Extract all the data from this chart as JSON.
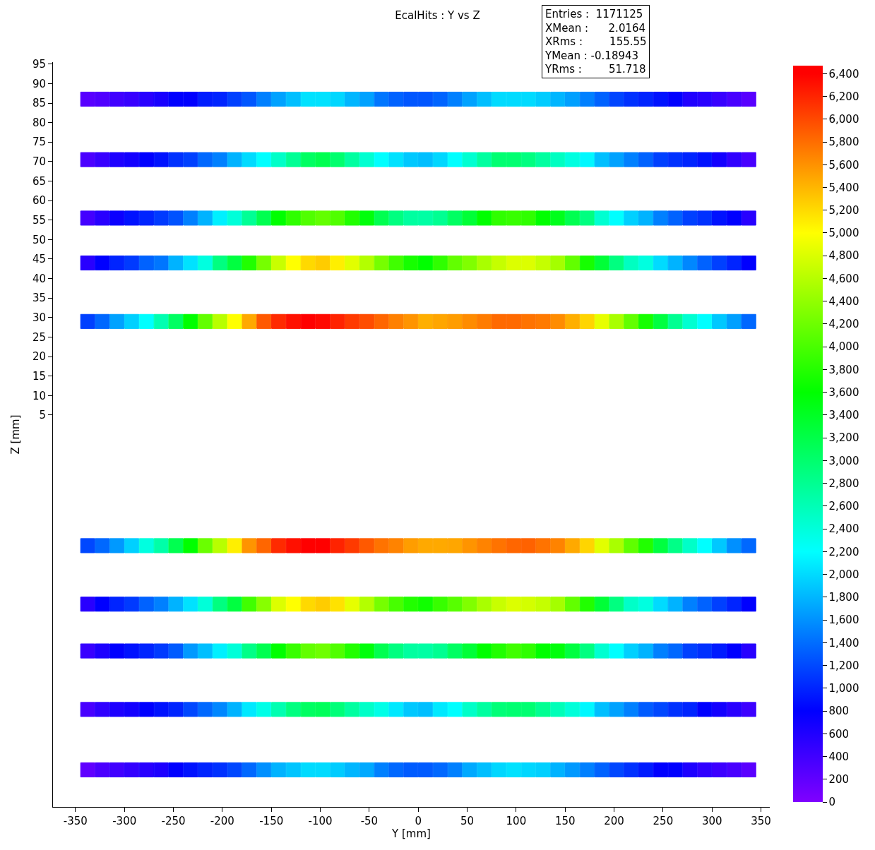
{
  "chart_data": {
    "type": "scatter",
    "title": "EcalHits : Y vs Z",
    "xlabel": "Y [mm]",
    "ylabel": "Z [mm]",
    "marker": "square",
    "annotations": [
      "Entries :  1171125",
      "XMean :      2.0164",
      "XRms :        155.55",
      "YMean : -0.18943",
      "YRms :        51.718"
    ],
    "x": [
      -337.5,
      -322.5,
      -307.5,
      -292.5,
      -277.5,
      -262.5,
      -247.5,
      -232.5,
      -217.5,
      -202.5,
      -187.5,
      -172.5,
      -157.5,
      -142.5,
      -127.5,
      -112.5,
      -97.5,
      -82.5,
      -67.5,
      -52.5,
      -37.5,
      -22.5,
      -7.5,
      7.5,
      22.5,
      37.5,
      52.5,
      67.5,
      82.5,
      97.5,
      112.5,
      127.5,
      142.5,
      157.5,
      172.5,
      187.5,
      202.5,
      217.5,
      232.5,
      247.5,
      262.5,
      277.5,
      292.5,
      307.5,
      322.5,
      337.5
    ],
    "xlim": [
      -373,
      359
    ],
    "xticks": [
      -350,
      -300,
      -250,
      -200,
      -150,
      -100,
      -50,
      0,
      50,
      100,
      150,
      200,
      250,
      300,
      350
    ],
    "ylim": [
      -95.5,
      95.5
    ],
    "yticks": [
      5,
      10,
      15,
      20,
      25,
      30,
      35,
      40,
      45,
      50,
      55,
      60,
      65,
      70,
      75,
      80,
      85,
      90,
      95
    ],
    "clim": [
      0,
      6470
    ],
    "cticks": [
      0,
      200,
      400,
      600,
      800,
      {
        "value": 1000,
        "label": "1,000"
      },
      {
        "value": 1200,
        "label": "1,200"
      },
      {
        "value": 1400,
        "label": "1,400"
      },
      {
        "value": 1600,
        "label": "1,600"
      },
      {
        "value": 1800,
        "label": "1,800"
      },
      {
        "value": 2000,
        "label": "2,000"
      },
      {
        "value": 2200,
        "label": "2,200"
      },
      {
        "value": 2400,
        "label": "2,400"
      },
      {
        "value": 2600,
        "label": "2,600"
      },
      {
        "value": 2800,
        "label": "2,800"
      },
      {
        "value": 3000,
        "label": "3,000"
      },
      {
        "value": 3200,
        "label": "3,200"
      },
      {
        "value": 3400,
        "label": "3,400"
      },
      {
        "value": 3600,
        "label": "3,600"
      },
      {
        "value": 3800,
        "label": "3,800"
      },
      {
        "value": 4000,
        "label": "4,000"
      },
      {
        "value": 4200,
        "label": "4,200"
      },
      {
        "value": 4400,
        "label": "4,400"
      },
      {
        "value": 4600,
        "label": "4,600"
      },
      {
        "value": 4800,
        "label": "4,800"
      },
      {
        "value": 5000,
        "label": "5,000"
      },
      {
        "value": 5200,
        "label": "5,200"
      },
      {
        "value": 5400,
        "label": "5,400"
      },
      {
        "value": 5600,
        "label": "5,600"
      },
      {
        "value": 5800,
        "label": "5,800"
      },
      {
        "value": 6000,
        "label": "6,000"
      },
      {
        "value": 6200,
        "label": "6,200"
      },
      {
        "value": 6400,
        "label": "6,400"
      }
    ],
    "series": [
      {
        "colors": [
          "#5500ff",
          "#5000ff",
          "#3a00ff",
          "#3000ff",
          "#2000ff",
          "#1400ff",
          "#0000ff",
          "#0000ff",
          "#001aff",
          "#0020ff",
          "#0040ff",
          "#0055ff",
          "#0080ff",
          "#00a0ff",
          "#00c0ff",
          "#00e0ff",
          "#00e0ff",
          "#00d4ff",
          "#00b4ff",
          "#00a0ff",
          "#0078ff",
          "#0060ff",
          "#0055ff",
          "#0055ff",
          "#0066ff",
          "#0080ff",
          "#00a0ff",
          "#00c0ff",
          "#00dcff",
          "#00dcff",
          "#00dcff",
          "#00ccff",
          "#00b4ff",
          "#009cff",
          "#0080ff",
          "#0060ff",
          "#0045ff",
          "#0030ff",
          "#0020ff",
          "#0010ff",
          "#0000ff",
          "#1400ff",
          "#2000ff",
          "#3000ff",
          "#4000ff",
          "#5500ff"
        ],
        "values": [
          86,
          86,
          86,
          86,
          86,
          86,
          86,
          86,
          86,
          86,
          86,
          86,
          86,
          86,
          86,
          86,
          86,
          86,
          86,
          86,
          86,
          86,
          86,
          86,
          86,
          86,
          86,
          86,
          86,
          86,
          86,
          86,
          86,
          86,
          86,
          86,
          86,
          86,
          86,
          86,
          86,
          86,
          86,
          86,
          86,
          86
        ],
        "cvalues": [
          250,
          300,
          400,
          450,
          550,
          650,
          800,
          800,
          960,
          1000,
          1150,
          1270,
          1500,
          1690,
          1850,
          2040,
          2040,
          1980,
          1800,
          1690,
          1450,
          1340,
          1270,
          1270,
          1350,
          1500,
          1690,
          1850,
          2000,
          2000,
          2000,
          1920,
          1800,
          1680,
          1500,
          1340,
          1180,
          1070,
          1000,
          900,
          800,
          600,
          550,
          450,
          350,
          250
        ]
      },
      {
        "colors": [
          "#4a00ff",
          "#3300ff",
          "#1800ff",
          "#1000ff",
          "#0000ff",
          "#0010ff",
          "#0030ff",
          "#0040ff",
          "#0068ff",
          "#0080ff",
          "#00b0ff",
          "#00dcff",
          "#00ffff",
          "#00ffc8",
          "#00ff96",
          "#00ff64",
          "#00ff50",
          "#00ff6e",
          "#00ffa0",
          "#00ffd0",
          "#00ffff",
          "#00e0ff",
          "#00c8ff",
          "#00c0ff",
          "#00d4ff",
          "#00ffff",
          "#00ffd0",
          "#00ffa0",
          "#00ff70",
          "#00ff70",
          "#00ff80",
          "#00ffa0",
          "#00ffc0",
          "#00ffe0",
          "#00f8ff",
          "#00c0ff",
          "#00a0ff",
          "#0080ff",
          "#0060ff",
          "#0040ff",
          "#0030ff",
          "#0020ff",
          "#0010ff",
          "#1000ff",
          "#2800ff",
          "#4000ff"
        ],
        "values": [
          70.5,
          70.5,
          70.5,
          70.5,
          70.5,
          70.5,
          70.5,
          70.5,
          70.5,
          70.5,
          70.5,
          70.5,
          70.5,
          70.5,
          70.5,
          70.5,
          70.5,
          70.5,
          70.5,
          70.5,
          70.5,
          70.5,
          70.5,
          70.5,
          70.5,
          70.5,
          70.5,
          70.5,
          70.5,
          70.5,
          70.5,
          70.5,
          70.5,
          70.5,
          70.5,
          70.5,
          70.5,
          70.5,
          70.5,
          70.5,
          70.5,
          70.5,
          70.5,
          70.5,
          70.5,
          70.5
        ],
        "cvalues": [
          330,
          450,
          620,
          680,
          800,
          900,
          1070,
          1150,
          1370,
          1500,
          1780,
          2000,
          2200,
          2500,
          2780,
          3060,
          3160,
          3000,
          2720,
          2450,
          2200,
          2040,
          1900,
          1850,
          1980,
          2200,
          2450,
          2720,
          2980,
          2980,
          2900,
          2720,
          2540,
          2370,
          2160,
          1850,
          1690,
          1500,
          1340,
          1150,
          1070,
          1000,
          900,
          680,
          500,
          350
        ]
      },
      {
        "colors": [
          "#3a00ff",
          "#2000ff",
          "#0800ff",
          "#0010ff",
          "#0020ff",
          "#0038ff",
          "#0050ff",
          "#0080ff",
          "#00b0ff",
          "#00f0ff",
          "#00ffd8",
          "#00ff96",
          "#00ff50",
          "#00ff00",
          "#30ff00",
          "#50ff00",
          "#60ff00",
          "#50ff00",
          "#20ff00",
          "#00ff10",
          "#00ff50",
          "#00ff80",
          "#00ffa0",
          "#00ffa8",
          "#00ff90",
          "#00ff60",
          "#00ff30",
          "#00ff00",
          "#30ff00",
          "#38ff00",
          "#30ff00",
          "#00ff00",
          "#00ff20",
          "#00ff50",
          "#00ff80",
          "#00ffd0",
          "#00ffff",
          "#00d0ff",
          "#00b0ff",
          "#0080ff",
          "#0060ff",
          "#0040ff",
          "#0030ff",
          "#0010ff",
          "#0000ff",
          "#2000ff"
        ],
        "values": [
          55.5,
          55.5,
          55.5,
          55.5,
          55.5,
          55.5,
          55.5,
          55.5,
          55.5,
          55.5,
          55.5,
          55.5,
          55.5,
          55.5,
          55.5,
          55.5,
          55.5,
          55.5,
          55.5,
          55.5,
          55.5,
          55.5,
          55.5,
          55.5,
          55.5,
          55.5,
          55.5,
          55.5,
          55.5,
          55.5,
          55.5,
          55.5,
          55.5,
          55.5,
          55.5,
          55.5,
          55.5,
          55.5,
          55.5,
          55.5,
          55.5,
          55.5,
          55.5,
          55.5,
          55.5,
          55.5
        ],
        "cvalues": [
          380,
          550,
          730,
          900,
          1000,
          1120,
          1250,
          1500,
          1780,
          2120,
          2410,
          2780,
          3160,
          3600,
          3860,
          4040,
          4140,
          4040,
          3780,
          3540,
          3160,
          2900,
          2720,
          2700,
          2800,
          3060,
          3300,
          3600,
          3860,
          3900,
          3860,
          3600,
          3450,
          3160,
          2900,
          2450,
          2200,
          1940,
          1780,
          1500,
          1340,
          1150,
          1070,
          900,
          800,
          550
        ]
      },
      {
        "colors": [
          "#2000ff",
          "#0000ff",
          "#0020ff",
          "#0038ff",
          "#0060ff",
          "#0078ff",
          "#00b0ff",
          "#00e0ff",
          "#00ffe0",
          "#00ff80",
          "#00ff40",
          "#20ff00",
          "#78ff00",
          "#c8ff00",
          "#ffff00",
          "#ffd800",
          "#ffcc00",
          "#fff000",
          "#e0ff00",
          "#b0ff00",
          "#78ff00",
          "#40ff00",
          "#18ff00",
          "#00ff00",
          "#30ff00",
          "#60ff00",
          "#80ff00",
          "#a8ff00",
          "#c0ff00",
          "#d8ff00",
          "#d8ff00",
          "#c0ff00",
          "#a0ff00",
          "#60ff00",
          "#18ff00",
          "#00ff30",
          "#00ff80",
          "#00ffc0",
          "#00ffe0",
          "#00d8ff",
          "#00b0ff",
          "#0088ff",
          "#0060ff",
          "#0040ff",
          "#0020ff",
          "#0000ff"
        ],
        "values": [
          44,
          44,
          44,
          44,
          44,
          44,
          44,
          44,
          44,
          44,
          44,
          44,
          44,
          44,
          44,
          44,
          44,
          44,
          44,
          44,
          44,
          44,
          44,
          44,
          44,
          44,
          44,
          44,
          44,
          44,
          44,
          44,
          44,
          44,
          44,
          44,
          44,
          44,
          44,
          44,
          44,
          44,
          44,
          44,
          44,
          44
        ],
        "cvalues": [
          550,
          800,
          1000,
          1120,
          1340,
          1450,
          1780,
          2040,
          2370,
          2900,
          3250,
          3780,
          4250,
          4700,
          5000,
          5210,
          5280,
          5090,
          4840,
          4580,
          4250,
          3950,
          3720,
          3600,
          3860,
          4140,
          4300,
          4530,
          4680,
          4810,
          4810,
          4680,
          4500,
          4140,
          3720,
          3300,
          2900,
          2540,
          2370,
          2000,
          1780,
          1540,
          1340,
          1150,
          1000,
          800
        ]
      },
      {
        "colors": [
          "#0040ff",
          "#0068ff",
          "#00a0ff",
          "#00d0ff",
          "#00ffff",
          "#00ffb0",
          "#00ff60",
          "#00ff00",
          "#60ff00",
          "#b8ff00",
          "#ffff00",
          "#ffa800",
          "#ff5a00",
          "#ff2a00",
          "#ff1000",
          "#ff0000",
          "#ff0800",
          "#ff2000",
          "#ff3800",
          "#ff4a00",
          "#ff6600",
          "#ff7e00",
          "#ff9000",
          "#ffaa00",
          "#ffa000",
          "#ff9800",
          "#ff8800",
          "#ff7a00",
          "#ff6800",
          "#ff6800",
          "#ff7000",
          "#ff7600",
          "#ff8800",
          "#ffaa00",
          "#ffd000",
          "#e8ff00",
          "#a8ff00",
          "#60ff00",
          "#18ff00",
          "#00ff40",
          "#00ff90",
          "#00ffd0",
          "#00ffff",
          "#00c8ff",
          "#009cff",
          "#0068ff"
        ],
        "values": [
          29,
          29,
          29,
          29,
          29,
          29,
          29,
          29,
          29,
          29,
          29,
          29,
          29,
          29,
          29,
          29,
          29,
          29,
          29,
          29,
          29,
          29,
          29,
          29,
          29,
          29,
          29,
          29,
          29,
          29,
          29,
          29,
          29,
          29,
          29,
          29,
          29,
          29,
          29,
          29,
          29,
          29,
          29,
          29,
          29,
          29
        ],
        "cvalues": [
          1150,
          1370,
          1690,
          1940,
          2200,
          2630,
          3060,
          3600,
          4140,
          4610,
          5000,
          5470,
          5910,
          6170,
          6310,
          6400,
          6350,
          6210,
          6080,
          5980,
          5840,
          5700,
          5590,
          5440,
          5490,
          5540,
          5630,
          5720,
          5820,
          5820,
          5770,
          5730,
          5630,
          5440,
          5230,
          4870,
          4530,
          4140,
          3720,
          3250,
          2800,
          2450,
          2200,
          1900,
          1680,
          1370
        ]
      },
      {
        "colors": [
          "#0048ff",
          "#0068ff",
          "#0098ff",
          "#00d0ff",
          "#00ffe0",
          "#00ffa8",
          "#00ff50",
          "#00ff00",
          "#68ff00",
          "#b8ff00",
          "#fff000",
          "#ff9000",
          "#ff6600",
          "#ff2800",
          "#ff1000",
          "#ff0000",
          "#ff0000",
          "#ff2000",
          "#ff3800",
          "#ff5a00",
          "#ff7000",
          "#ff8000",
          "#ff9800",
          "#ffa800",
          "#ffa800",
          "#ffa400",
          "#ff9000",
          "#ff8000",
          "#ff7000",
          "#ff6600",
          "#ff6000",
          "#ff7000",
          "#ff8000",
          "#ffa800",
          "#ffd000",
          "#e0ff00",
          "#a8ff00",
          "#5cff00",
          "#20ff00",
          "#00ff40",
          "#00ff88",
          "#00ffc8",
          "#00ffff",
          "#00c8ff",
          "#0090ff",
          "#0068ff"
        ],
        "values": [
          -28.5,
          -28.5,
          -28.5,
          -28.5,
          -28.5,
          -28.5,
          -28.5,
          -28.5,
          -28.5,
          -28.5,
          -28.5,
          -28.5,
          -28.5,
          -28.5,
          -28.5,
          -28.5,
          -28.5,
          -28.5,
          -28.5,
          -28.5,
          -28.5,
          -28.5,
          -28.5,
          -28.5,
          -28.5,
          -28.5,
          -28.5,
          -28.5,
          -28.5,
          -28.5,
          -28.5,
          -28.5,
          -28.5,
          -28.5,
          -28.5,
          -28.5,
          -28.5,
          -28.5,
          -28.5,
          -28.5,
          -28.5,
          -28.5,
          -28.5,
          -28.5,
          -28.5,
          -28.5
        ],
        "cvalues": [
          1190,
          1370,
          1640,
          1940,
          2370,
          2680,
          3160,
          3600,
          4180,
          4610,
          5090,
          5590,
          5840,
          6170,
          6310,
          6400,
          6400,
          6210,
          6080,
          5910,
          5770,
          5680,
          5540,
          5470,
          5470,
          5490,
          5590,
          5680,
          5770,
          5840,
          5860,
          5770,
          5680,
          5470,
          5230,
          4840,
          4530,
          4120,
          3780,
          3250,
          2860,
          2500,
          2200,
          1900,
          1590,
          1370
        ]
      },
      {
        "colors": [
          "#2000ff",
          "#0000ff",
          "#0020ff",
          "#0038ff",
          "#0060ff",
          "#0080ff",
          "#00b0ff",
          "#00e0ff",
          "#00ffd8",
          "#00ff80",
          "#00ff40",
          "#40ff00",
          "#88ff00",
          "#d8ff00",
          "#ffff00",
          "#ffd800",
          "#ffcc00",
          "#ffe000",
          "#e8ff00",
          "#b0ff00",
          "#78ff00",
          "#48ff00",
          "#20ff00",
          "#10ff00",
          "#38ff00",
          "#58ff00",
          "#80ff00",
          "#a8ff00",
          "#c8ff00",
          "#d8ff00",
          "#d0ff00",
          "#c0ff00",
          "#a0ff00",
          "#60ff00",
          "#20ff00",
          "#00ff30",
          "#00ff80",
          "#00ffc8",
          "#00ffe0",
          "#00d8ff",
          "#00b0ff",
          "#0080ff",
          "#0060ff",
          "#0040ff",
          "#0020ff",
          "#0000ff"
        ],
        "values": [
          -43.5,
          -43.5,
          -43.5,
          -43.5,
          -43.5,
          -43.5,
          -43.5,
          -43.5,
          -43.5,
          -43.5,
          -43.5,
          -43.5,
          -43.5,
          -43.5,
          -43.5,
          -43.5,
          -43.5,
          -43.5,
          -43.5,
          -43.5,
          -43.5,
          -43.5,
          -43.5,
          -43.5,
          -43.5,
          -43.5,
          -43.5,
          -43.5,
          -43.5,
          -43.5,
          -43.5,
          -43.5,
          -43.5,
          -43.5,
          -43.5,
          -43.5,
          -43.5,
          -43.5,
          -43.5,
          -43.5,
          -43.5,
          -43.5,
          -43.5,
          -43.5,
          -43.5,
          -43.5
        ],
        "cvalues": [
          550,
          800,
          1000,
          1120,
          1340,
          1500,
          1780,
          2040,
          2410,
          2900,
          3250,
          3950,
          4340,
          4810,
          5000,
          5210,
          5280,
          5160,
          4870,
          4580,
          4250,
          3990,
          3780,
          3690,
          3900,
          4080,
          4300,
          4530,
          4700,
          4810,
          4760,
          4680,
          4500,
          4140,
          3780,
          3300,
          2900,
          2500,
          2370,
          2000,
          1780,
          1500,
          1340,
          1150,
          1000,
          800
        ]
      },
      {
        "colors": [
          "#3000ff",
          "#1800ff",
          "#0000ff",
          "#0010ff",
          "#0020ff",
          "#0038ff",
          "#0058ff",
          "#0098ff",
          "#00c0ff",
          "#00f0ff",
          "#00ffd8",
          "#00ff88",
          "#00ff50",
          "#00ff00",
          "#38ff00",
          "#60ff00",
          "#70ff00",
          "#50ff00",
          "#20ff00",
          "#00ff10",
          "#00ff50",
          "#00ff80",
          "#00ffa0",
          "#00ffa8",
          "#00ff90",
          "#00ff60",
          "#00ff30",
          "#00ff00",
          "#20ff00",
          "#40ff00",
          "#30ff00",
          "#00ff00",
          "#00ff10",
          "#00ff40",
          "#00ff80",
          "#00ffd0",
          "#00ffff",
          "#00d0ff",
          "#00b0ff",
          "#0080ff",
          "#0068ff",
          "#0040ff",
          "#0030ff",
          "#0018ff",
          "#0000ff",
          "#2000ff"
        ],
        "values": [
          -55.5,
          -55.5,
          -55.5,
          -55.5,
          -55.5,
          -55.5,
          -55.5,
          -55.5,
          -55.5,
          -55.5,
          -55.5,
          -55.5,
          -55.5,
          -55.5,
          -55.5,
          -55.5,
          -55.5,
          -55.5,
          -55.5,
          -55.5,
          -55.5,
          -55.5,
          -55.5,
          -55.5,
          -55.5,
          -55.5,
          -55.5,
          -55.5,
          -55.5,
          -55.5,
          -55.5,
          -55.5,
          -55.5,
          -55.5,
          -55.5,
          -55.5,
          -55.5,
          -55.5,
          -55.5,
          -55.5,
          -55.5,
          -55.5,
          -55.5,
          -55.5,
          -55.5,
          -55.5
        ],
        "cvalues": [
          450,
          620,
          800,
          900,
          1000,
          1120,
          1300,
          1640,
          1850,
          2120,
          2410,
          2860,
          3160,
          3600,
          3900,
          4140,
          4210,
          4040,
          3780,
          3540,
          3160,
          2900,
          2720,
          2700,
          2800,
          3060,
          3300,
          3600,
          3780,
          3950,
          3860,
          3600,
          3540,
          3250,
          2900,
          2450,
          2200,
          1940,
          1780,
          1500,
          1370,
          1150,
          1070,
          950,
          800,
          550
        ]
      },
      {
        "colors": [
          "#4000ff",
          "#2800ff",
          "#1800ff",
          "#1000ff",
          "#0000ff",
          "#0010ff",
          "#0020ff",
          "#0048ff",
          "#0068ff",
          "#0088ff",
          "#00b0ff",
          "#00e8ff",
          "#00ffe8",
          "#00ffb0",
          "#00ff80",
          "#00ff60",
          "#00ff58",
          "#00ff78",
          "#00ffa0",
          "#00ffc8",
          "#00ffe8",
          "#00e8ff",
          "#00c8ff",
          "#00c0ff",
          "#00e8ff",
          "#00ffff",
          "#00ffc8",
          "#00ffa0",
          "#00ff78",
          "#00ff70",
          "#00ff70",
          "#00ff90",
          "#00ffb8",
          "#00ffd8",
          "#00f8ff",
          "#00c0ff",
          "#00a0ff",
          "#0080ff",
          "#0058ff",
          "#0048ff",
          "#0030ff",
          "#0020ff",
          "#0000ff",
          "#1000ff",
          "#2000ff",
          "#3400ff"
        ],
        "values": [
          -70.5,
          -70.5,
          -70.5,
          -70.5,
          -70.5,
          -70.5,
          -70.5,
          -70.5,
          -70.5,
          -70.5,
          -70.5,
          -70.5,
          -70.5,
          -70.5,
          -70.5,
          -70.5,
          -70.5,
          -70.5,
          -70.5,
          -70.5,
          -70.5,
          -70.5,
          -70.5,
          -70.5,
          -70.5,
          -70.5,
          -70.5,
          -70.5,
          -70.5,
          -70.5,
          -70.5,
          -70.5,
          -70.5,
          -70.5,
          -70.5,
          -70.5,
          -70.5,
          -70.5,
          -70.5,
          -70.5,
          -70.5,
          -70.5,
          -70.5,
          -70.5,
          -70.5,
          -70.5
        ],
        "cvalues": [
          350,
          500,
          620,
          680,
          800,
          900,
          1000,
          1190,
          1370,
          1540,
          1780,
          2080,
          2330,
          2630,
          2900,
          3060,
          3100,
          2940,
          2720,
          2500,
          2330,
          2080,
          1900,
          1850,
          2080,
          2200,
          2500,
          2720,
          2940,
          2980,
          2980,
          2800,
          2590,
          2410,
          2160,
          1850,
          1690,
          1500,
          1300,
          1190,
          1070,
          1000,
          800,
          680,
          550,
          420
        ]
      },
      {
        "colors": [
          "#6000ff",
          "#4800ff",
          "#3800ff",
          "#2c00ff",
          "#2000ff",
          "#1400ff",
          "#0000ff",
          "#0010ff",
          "#0020ff",
          "#0030ff",
          "#0048ff",
          "#0068ff",
          "#0090ff",
          "#00b0ff",
          "#00c4ff",
          "#00dcff",
          "#00dcff",
          "#00ccff",
          "#00b4ff",
          "#00a8ff",
          "#0080ff",
          "#0068ff",
          "#0058ff",
          "#0058ff",
          "#0068ff",
          "#0080ff",
          "#00a8ff",
          "#00c0ff",
          "#00d8ff",
          "#00e0ff",
          "#00d8ff",
          "#00d0ff",
          "#00b0ff",
          "#0098ff",
          "#0080ff",
          "#0060ff",
          "#0048ff",
          "#0030ff",
          "#0018ff",
          "#0000ff",
          "#0000ff",
          "#1800ff",
          "#2800ff",
          "#3400ff",
          "#4000ff",
          "#5800ff"
        ],
        "values": [
          -86,
          -86,
          -86,
          -86,
          -86,
          -86,
          -86,
          -86,
          -86,
          -86,
          -86,
          -86,
          -86,
          -86,
          -86,
          -86,
          -86,
          -86,
          -86,
          -86,
          -86,
          -86,
          -86,
          -86,
          -86,
          -86,
          -86,
          -86,
          -86,
          -86,
          -86,
          -86,
          -86,
          -86,
          -86,
          -86,
          -86,
          -86,
          -86,
          -86,
          -86,
          -86,
          -86,
          -86,
          -86,
          -86
        ],
        "cvalues": [
          200,
          330,
          400,
          480,
          550,
          620,
          800,
          900,
          1000,
          1070,
          1190,
          1370,
          1590,
          1780,
          1880,
          2000,
          2000,
          1920,
          1800,
          1730,
          1500,
          1370,
          1300,
          1300,
          1370,
          1500,
          1730,
          1850,
          1980,
          2040,
          1980,
          1940,
          1780,
          1640,
          1500,
          1340,
          1190,
          1070,
          950,
          800,
          800,
          620,
          500,
          420,
          350,
          240
        ]
      }
    ]
  }
}
